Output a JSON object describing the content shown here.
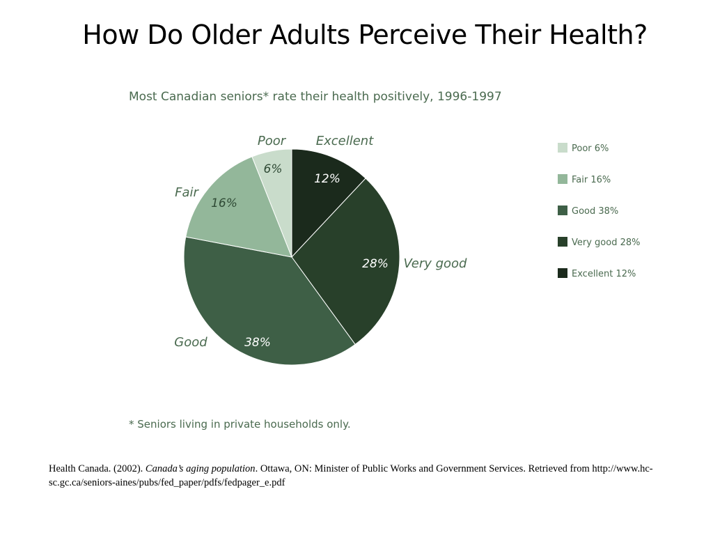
{
  "slide": {
    "title": "How Do Older Adults Perceive Their Health?"
  },
  "chart_data": {
    "type": "pie",
    "title": "Most Canadian seniors* rate their health positively, 1996-1997",
    "footnote": "* Seniors living in private households only.",
    "slices": [
      {
        "label": "Excellent",
        "value": 12,
        "pct_label": "12%",
        "color": "#1b2a1c",
        "legend": "Excellent 12%"
      },
      {
        "label": "Very good",
        "value": 28,
        "pct_label": "28%",
        "color": "#28402a",
        "legend": "Very good 28%"
      },
      {
        "label": "Good",
        "value": 38,
        "pct_label": "38%",
        "color": "#3e5f46",
        "legend": "Good 38%"
      },
      {
        "label": "Fair",
        "value": 16,
        "pct_label": "16%",
        "color": "#93b79a",
        "legend": "Fair 16%"
      },
      {
        "label": "Poor",
        "value": 6,
        "pct_label": "6%",
        "color": "#c9dccb",
        "legend": "Poor 6%"
      }
    ],
    "legend_order": [
      "Poor 6%",
      "Fair 16%",
      "Good 38%",
      "Very good 28%",
      "Excellent 12%"
    ],
    "start": "12 o'clock",
    "direction": "clockwise"
  },
  "citation": {
    "author_year": "Health Canada. (2002).",
    "work_title": "Canada’s aging population",
    "publisher": ". Ottawa, ON: Minister of Public Works and Government Services.  Retrieved from http://www.hc-sc.gc.ca/seniors-aines/pubs/fed_paper/pdfs/fedpager_e.pdf"
  }
}
